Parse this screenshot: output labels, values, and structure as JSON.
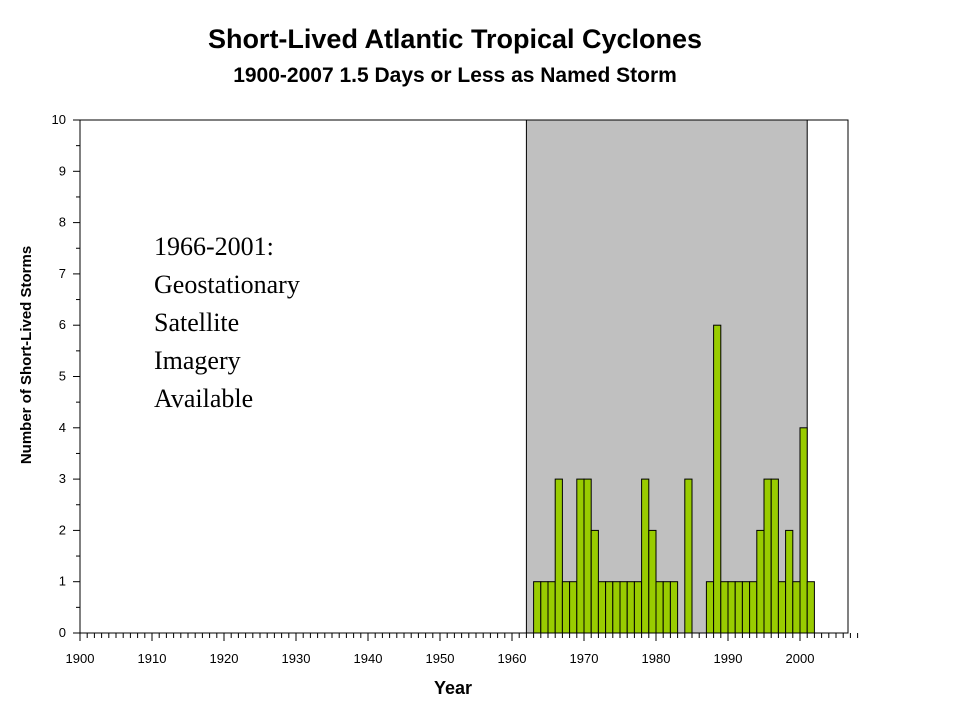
{
  "chart_data": {
    "type": "bar",
    "title": "Short-Lived Atlantic Tropical Cyclones",
    "subtitle": "1900-2007 1.5 Days or Less as Named Storm",
    "xlabel": "Year",
    "ylabel": "Number of Short-Lived Storms",
    "xlim": [
      1900,
      2008
    ],
    "ylim": [
      0,
      10
    ],
    "x_ticks": [
      1900,
      1910,
      1920,
      1930,
      1940,
      1950,
      1960,
      1970,
      1980,
      1990,
      2000
    ],
    "y_ticks": [
      0,
      1,
      2,
      3,
      4,
      5,
      6,
      7,
      8,
      9,
      10
    ],
    "shaded_region": {
      "start": 1962,
      "end": 2001,
      "color": "#c0c0c0"
    },
    "bar_color": "#99cc00",
    "x": [
      1963,
      1964,
      1965,
      1966,
      1967,
      1968,
      1969,
      1970,
      1971,
      1972,
      1973,
      1974,
      1975,
      1976,
      1977,
      1978,
      1979,
      1980,
      1981,
      1982,
      1983,
      1984,
      1985,
      1986,
      1987,
      1988,
      1989,
      1990,
      1991,
      1992,
      1993,
      1994,
      1995,
      1996,
      1997,
      1998,
      1999,
      2000,
      2001
    ],
    "values": [
      1,
      1,
      1,
      3,
      1,
      1,
      3,
      3,
      2,
      1,
      1,
      1,
      1,
      1,
      1,
      3,
      2,
      1,
      1,
      1,
      0,
      3,
      0,
      0,
      1,
      6,
      1,
      1,
      1,
      1,
      1,
      2,
      3,
      3,
      1,
      2,
      1,
      4,
      1
    ],
    "annotation": [
      "1966-2001:",
      "Geostationary",
      "Satellite",
      "Imagery",
      "Available"
    ]
  }
}
